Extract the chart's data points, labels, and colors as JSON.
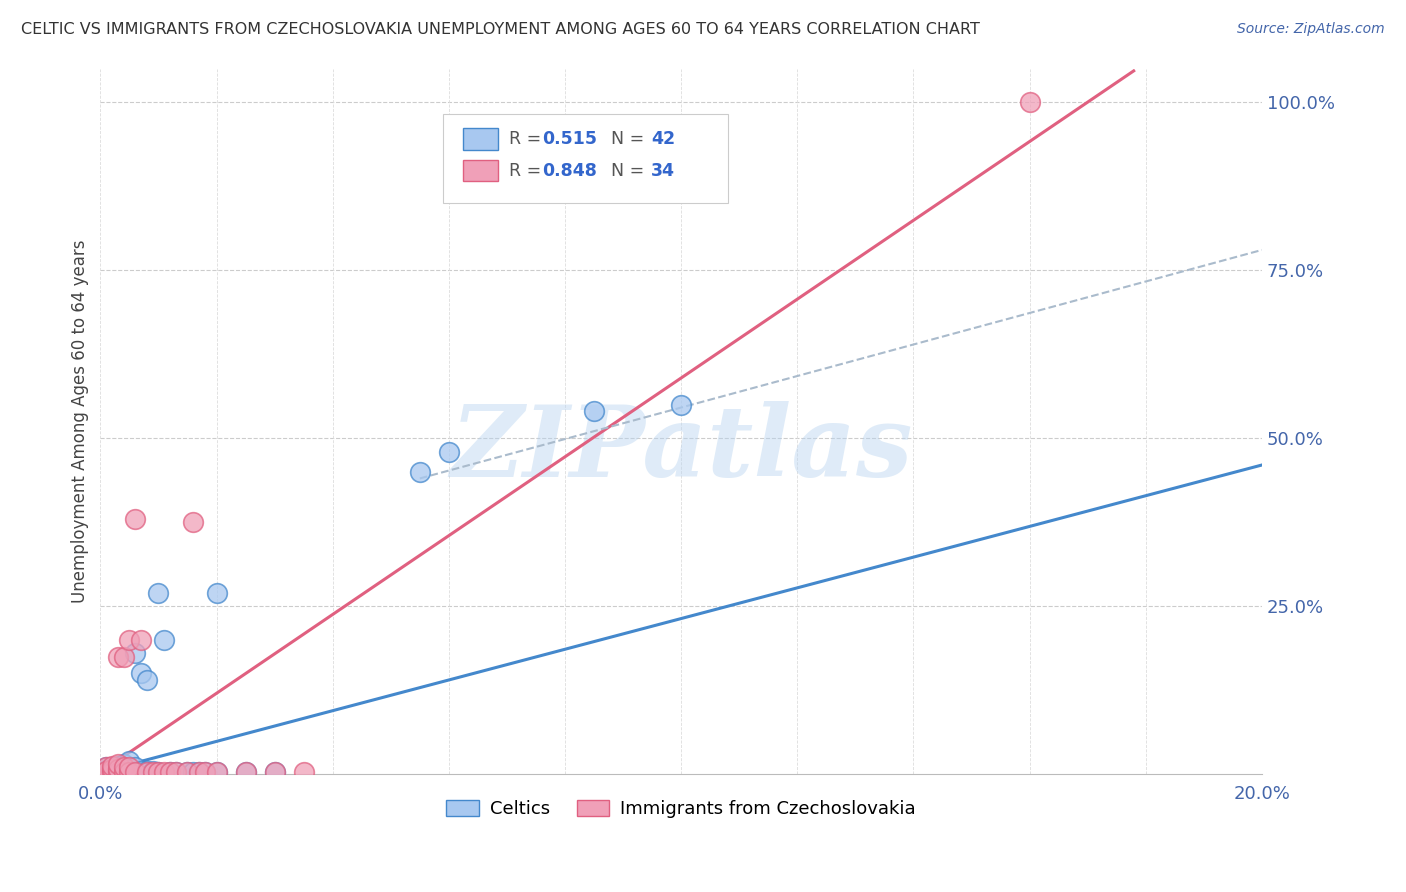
{
  "title": "CELTIC VS IMMIGRANTS FROM CZECHOSLOVAKIA UNEMPLOYMENT AMONG AGES 60 TO 64 YEARS CORRELATION CHART",
  "source": "Source: ZipAtlas.com",
  "ylabel": "Unemployment Among Ages 60 to 64 years",
  "legend_label1": "Celtics",
  "legend_label2": "Immigrants from Czechoslovakia",
  "R1": 0.515,
  "N1": 42,
  "R2": 0.848,
  "N2": 34,
  "color_blue": "#a8c8f0",
  "color_pink": "#f0a0b8",
  "color_blue_line": "#4488cc",
  "color_pink_line": "#e06080",
  "color_dashed": "#aabbcc",
  "watermark": "ZIPatlas",
  "background_color": "#ffffff",
  "celtics_x": [
    0.001,
    0.001,
    0.001,
    0.002,
    0.002,
    0.002,
    0.002,
    0.003,
    0.003,
    0.003,
    0.003,
    0.004,
    0.004,
    0.004,
    0.005,
    0.005,
    0.005,
    0.006,
    0.006,
    0.006,
    0.007,
    0.007,
    0.008,
    0.008,
    0.009,
    0.01,
    0.01,
    0.011,
    0.012,
    0.013,
    0.015,
    0.016,
    0.017,
    0.018,
    0.02,
    0.02,
    0.025,
    0.03,
    0.055,
    0.06,
    0.085,
    0.1
  ],
  "celtics_y": [
    0.003,
    0.006,
    0.01,
    0.003,
    0.005,
    0.008,
    0.01,
    0.003,
    0.005,
    0.008,
    0.012,
    0.003,
    0.006,
    0.015,
    0.003,
    0.008,
    0.02,
    0.003,
    0.01,
    0.18,
    0.005,
    0.15,
    0.005,
    0.14,
    0.005,
    0.003,
    0.27,
    0.2,
    0.003,
    0.003,
    0.003,
    0.003,
    0.003,
    0.003,
    0.27,
    0.003,
    0.003,
    0.003,
    0.45,
    0.48,
    0.54,
    0.55
  ],
  "czecho_x": [
    0.001,
    0.001,
    0.001,
    0.002,
    0.002,
    0.002,
    0.003,
    0.003,
    0.003,
    0.003,
    0.004,
    0.004,
    0.004,
    0.005,
    0.005,
    0.005,
    0.006,
    0.006,
    0.007,
    0.008,
    0.009,
    0.01,
    0.011,
    0.012,
    0.013,
    0.015,
    0.016,
    0.017,
    0.018,
    0.02,
    0.025,
    0.03,
    0.035,
    0.16
  ],
  "czecho_y": [
    0.003,
    0.01,
    0.005,
    0.003,
    0.008,
    0.012,
    0.003,
    0.008,
    0.015,
    0.175,
    0.003,
    0.01,
    0.175,
    0.003,
    0.01,
    0.2,
    0.003,
    0.38,
    0.2,
    0.003,
    0.003,
    0.003,
    0.003,
    0.003,
    0.003,
    0.003,
    0.375,
    0.003,
    0.003,
    0.003,
    0.003,
    0.003,
    0.003,
    1.0
  ],
  "xlim": [
    0.0,
    0.2
  ],
  "ylim": [
    0.0,
    1.05
  ],
  "blue_line_x0": 0.0,
  "blue_line_y0": 0.003,
  "blue_line_x1": 0.2,
  "blue_line_y1": 0.46,
  "pink_line_x0": 0.0,
  "pink_line_y0": 0.003,
  "pink_line_x1": 0.17,
  "pink_line_y1": 1.0,
  "dash_line_x0": 0.055,
  "dash_line_y0": 0.44,
  "dash_line_x1": 0.2,
  "dash_line_y1": 0.78
}
